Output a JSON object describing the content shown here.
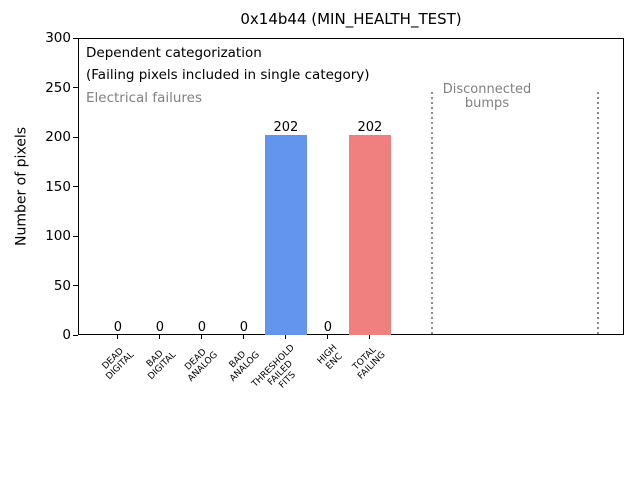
{
  "figure": {
    "title": "0x14b44 (MIN_HEALTH_TEST)"
  },
  "annotations": {
    "dependent": "Dependent categorization",
    "failing_note": "(Failing pixels included in single category)",
    "electrical": "Electrical failures",
    "disconnected_line1": "Disconnected",
    "disconnected_line2": "bumps"
  },
  "colors": {
    "bar_blue": "#6495ed",
    "bar_red": "#f08080",
    "annotation_gray": "#808080",
    "axis_black": "#000000",
    "background": "#ffffff",
    "vline_gray": "#8a8a8a"
  },
  "chart_data": {
    "type": "bar",
    "title": "0x14b44 (MIN_HEALTH_TEST)",
    "xlabel": "",
    "ylabel": "Number of pixels",
    "categories": [
      [
        "DEAD",
        "DIGITAL"
      ],
      [
        "BAD",
        "DIGITAL"
      ],
      [
        "DEAD",
        "ANALOG"
      ],
      [
        "BAD",
        "ANALOG"
      ],
      [
        "THRESHOLD",
        "FAILED",
        "FITS"
      ],
      [
        "HIGH",
        "ENC"
      ],
      [
        "TOTAL",
        "FAILING"
      ]
    ],
    "values": [
      0,
      0,
      0,
      0,
      202,
      0,
      202
    ],
    "value_labels": [
      "0",
      "0",
      "0",
      "0",
      "202",
      "0",
      "202"
    ],
    "bar_colors": [
      null,
      null,
      null,
      null,
      "#6495ed",
      null,
      "#f08080"
    ],
    "ylim": [
      0,
      300
    ],
    "yticks": [
      0,
      50,
      100,
      150,
      200,
      250,
      300
    ],
    "xlim": [
      -0.95,
      12.05
    ],
    "grid": false,
    "legend": null,
    "vlines": {
      "x": [
        7.48,
        11.43
      ],
      "ymin": 0,
      "ymax": 245,
      "style": "dotted",
      "color": "#8a8a8a"
    }
  }
}
